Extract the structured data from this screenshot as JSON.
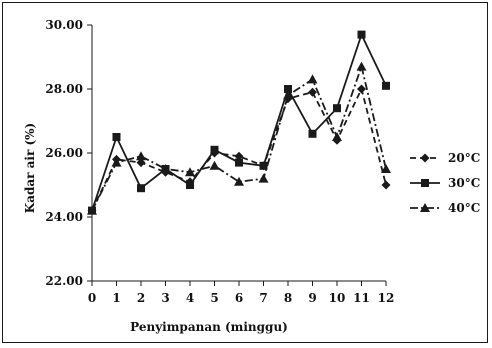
{
  "chart_data": {
    "type": "line",
    "title": "",
    "xlabel": "Penyimpanan (minggu)",
    "ylabel": "Kadar air (%)",
    "x": [
      0,
      1,
      2,
      3,
      4,
      5,
      6,
      7,
      8,
      9,
      10,
      11,
      12
    ],
    "xlim": [
      0,
      12
    ],
    "ylim": [
      22,
      30
    ],
    "yticks": [
      "22.00",
      "24.00",
      "26.00",
      "28.00",
      "30.00"
    ],
    "xticks": [
      "0",
      "1",
      "2",
      "3",
      "4",
      "5",
      "6",
      "7",
      "8",
      "9",
      "10",
      "11",
      "12"
    ],
    "grid": false,
    "legend_position": "right",
    "series": [
      {
        "name": "20°C",
        "marker": "diamond",
        "line": "dash",
        "values": [
          24.2,
          25.8,
          25.7,
          25.4,
          25.1,
          26.0,
          25.9,
          25.6,
          27.7,
          27.9,
          26.4,
          28.0,
          25.0
        ]
      },
      {
        "name": "30°C",
        "marker": "square",
        "line": "solid",
        "values": [
          24.2,
          26.5,
          24.9,
          25.5,
          25.0,
          26.1,
          25.7,
          25.6,
          28.0,
          26.6,
          27.4,
          29.7,
          28.1
        ]
      },
      {
        "name": "40°C",
        "marker": "triangle",
        "line": "dashdot",
        "values": [
          24.2,
          25.7,
          25.9,
          25.5,
          25.4,
          25.6,
          25.1,
          25.2,
          27.8,
          28.3,
          26.5,
          28.7,
          25.5
        ]
      }
    ],
    "colors": {
      "line": "#1a1a1a",
      "axis": "#1a1a1a"
    }
  }
}
